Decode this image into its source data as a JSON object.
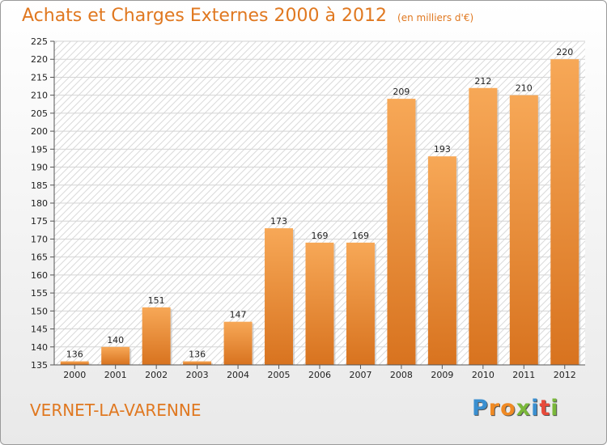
{
  "title": "Achats et Charges Externes 2000 à 2012",
  "unit": "(en milliers d'€)",
  "commune": "VERNET-LA-VARENNE",
  "logo": {
    "letters": [
      "P",
      "r",
      "o",
      "x",
      "i",
      "t",
      "i"
    ],
    "colors": [
      "#3a8fd0",
      "#f08a24",
      "#f08a24",
      "#7ab83a",
      "#3a8fd0",
      "#e84a3a",
      "#7ab83a"
    ]
  },
  "colors": {
    "bar_top": "#f7a857",
    "bar_bottom": "#d8731f",
    "accent": "#e07820"
  },
  "chart_data": {
    "type": "bar",
    "title": "Achats et Charges Externes 2000 à 2012",
    "categories": [
      "2000",
      "2001",
      "2002",
      "2003",
      "2004",
      "2005",
      "2006",
      "2007",
      "2008",
      "2009",
      "2010",
      "2011",
      "2012"
    ],
    "values": [
      136,
      140,
      151,
      136,
      147,
      173,
      169,
      169,
      209,
      193,
      212,
      210,
      220
    ],
    "ylim": [
      135,
      225
    ],
    "yticks": [
      135,
      140,
      145,
      150,
      155,
      160,
      165,
      170,
      175,
      180,
      185,
      190,
      195,
      200,
      205,
      210,
      215,
      220,
      225
    ],
    "grid": true,
    "xlabel": "",
    "ylabel": ""
  }
}
